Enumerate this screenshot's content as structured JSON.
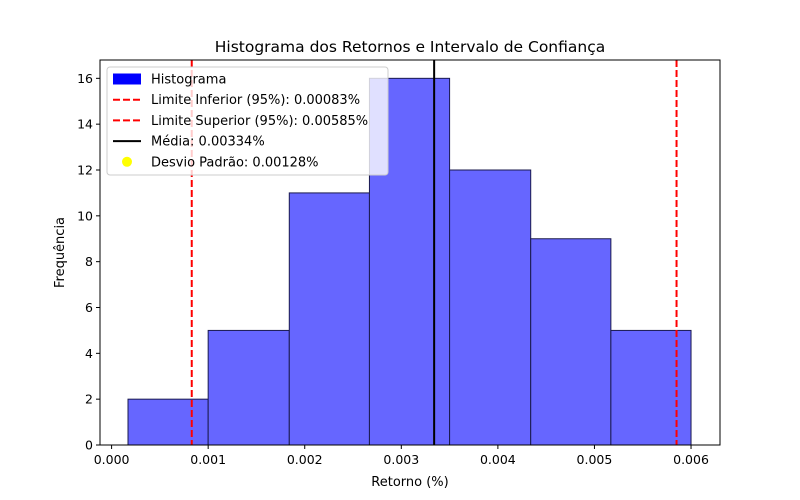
{
  "chart_data": {
    "type": "bar",
    "title": "Histograma dos Retornos e Intervalo de Confiança",
    "xlabel": "Retorno (%)",
    "ylabel": "Frequência",
    "xlim": [
      -0.00012,
      0.0063
    ],
    "ylim": [
      0,
      16.8
    ],
    "xticks": [
      "0.000",
      "0.001",
      "0.002",
      "0.003",
      "0.004",
      "0.005",
      "0.006"
    ],
    "yticks": [
      "0",
      "2",
      "4",
      "6",
      "8",
      "10",
      "12",
      "14",
      "16"
    ],
    "bins": [
      {
        "x0": 0.00017,
        "x1": 0.001,
        "count": 2
      },
      {
        "x0": 0.001,
        "x1": 0.00184,
        "count": 5
      },
      {
        "x0": 0.00184,
        "x1": 0.00267,
        "count": 11
      },
      {
        "x0": 0.00267,
        "x1": 0.0035,
        "count": 16
      },
      {
        "x0": 0.0035,
        "x1": 0.00434,
        "count": 12
      },
      {
        "x0": 0.00434,
        "x1": 0.00517,
        "count": 9
      },
      {
        "x0": 0.00517,
        "x1": 0.006,
        "count": 5
      }
    ],
    "vlines": [
      {
        "x": 0.00083,
        "color": "#ff0000",
        "style": "dashed"
      },
      {
        "x": 0.00585,
        "color": "#ff0000",
        "style": "dashed"
      },
      {
        "x": 0.00334,
        "color": "#000000",
        "style": "solid"
      }
    ],
    "legend": {
      "placement": "top-left",
      "entries": [
        {
          "label": "Histograma",
          "kind": "patch",
          "color": "#0000ff"
        },
        {
          "label": "Limite Inferior (95%): 0.00083%",
          "kind": "dashed",
          "color": "#ff0000"
        },
        {
          "label": "Limite Superior (95%): 0.00585%",
          "kind": "dashed",
          "color": "#ff0000"
        },
        {
          "label": "Média: 0.00334%",
          "kind": "line",
          "color": "#000000"
        },
        {
          "label": "Desvio Padrão: 0.00128%",
          "kind": "dot",
          "color": "#ffff00"
        }
      ]
    },
    "bar_color": "#6666ff",
    "bar_edge": "#1a1a4d",
    "grid": false
  }
}
